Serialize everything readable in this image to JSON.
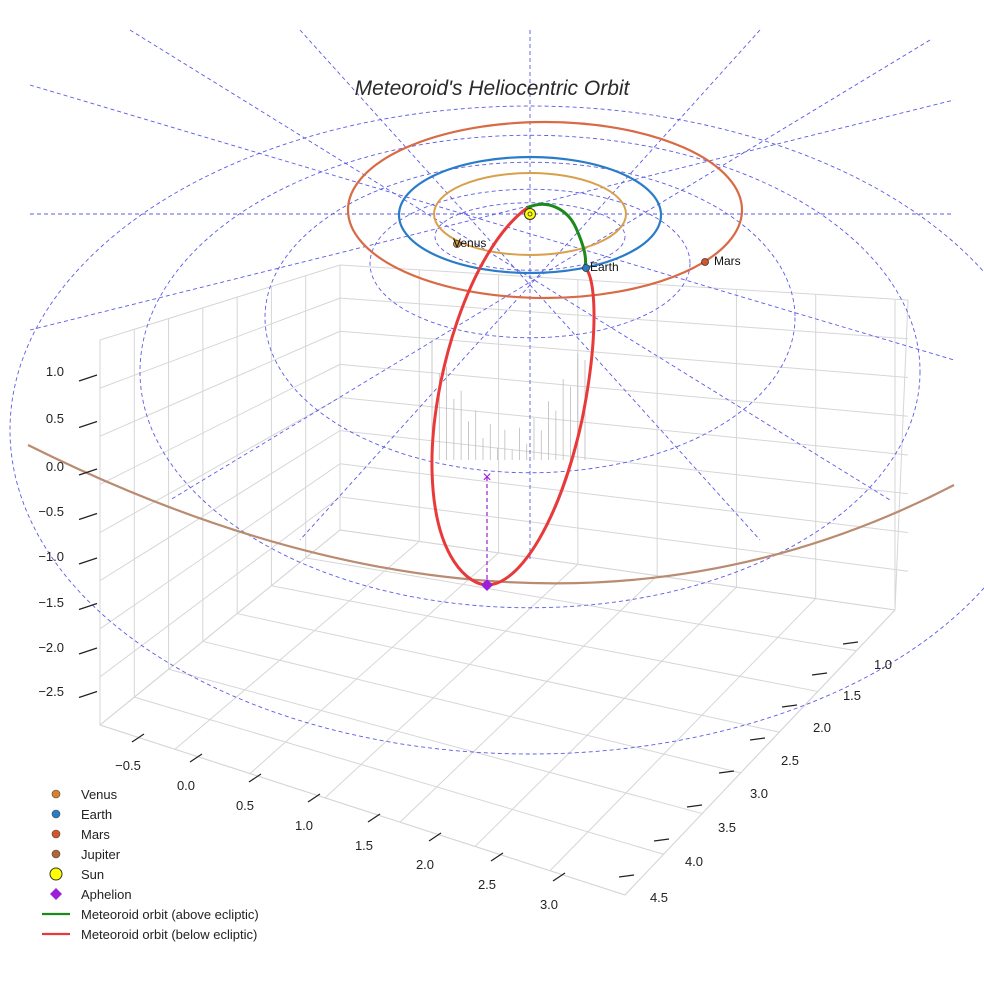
{
  "chart_data": {
    "type": "line",
    "title": "Meteoroid's Heliocentric Orbit",
    "axes": {
      "x_ticks": [
        "−0.5",
        "0.0",
        "0.5",
        "1.0",
        "1.5",
        "2.0",
        "2.5",
        "3.0"
      ],
      "y_ticks": [
        "1.0",
        "1.5",
        "2.0",
        "2.5",
        "3.0",
        "3.5",
        "4.0",
        "4.5"
      ],
      "z_ticks": [
        "1.0",
        "0.5",
        "0.0",
        "−0.5",
        "−1.0",
        "−1.5",
        "−2.0",
        "−2.5"
      ],
      "grid": true
    },
    "planets": [
      {
        "name": "Venus",
        "label": "Venus",
        "color": "#d89a3c",
        "orbit_color": "#d8a04a"
      },
      {
        "name": "Earth",
        "label": "Earth",
        "color": "#2b7cc8",
        "orbit_color": "#2b7cc8"
      },
      {
        "name": "Mars",
        "label": "Mars",
        "color": "#d4562a",
        "orbit_color": "#d86a45"
      },
      {
        "name": "Jupiter",
        "label": "",
        "color": "#b07a55",
        "orbit_color": "#b98b70"
      }
    ],
    "markers": [
      {
        "name": "Sun",
        "color": "#ffff00"
      },
      {
        "name": "Aphelion",
        "color": "#9b1fd8"
      }
    ],
    "series": [
      {
        "name": "Meteoroid orbit (above ecliptic)",
        "color": "#1a8a1a"
      },
      {
        "name": "Meteoroid orbit (below ecliptic)",
        "color": "#e83a3a"
      }
    ],
    "legend": {
      "placement": "bottom-left",
      "entries": [
        {
          "label": "Venus",
          "kind": "dot",
          "color": "#d8822a"
        },
        {
          "label": "Earth",
          "kind": "dot",
          "color": "#2b7cc8"
        },
        {
          "label": "Mars",
          "kind": "dot",
          "color": "#d4562a"
        },
        {
          "label": "Jupiter",
          "kind": "dot",
          "color": "#b0653a"
        },
        {
          "label": "Sun",
          "kind": "sun",
          "color": "#ffff00"
        },
        {
          "label": "Aphelion",
          "kind": "diamond",
          "color": "#9b1fd8"
        },
        {
          "label": "Meteoroid orbit (above ecliptic)",
          "kind": "line",
          "color": "#1a8a1a"
        },
        {
          "label": "Meteoroid orbit (below ecliptic)",
          "kind": "line",
          "color": "#e83a3a"
        }
      ]
    }
  }
}
